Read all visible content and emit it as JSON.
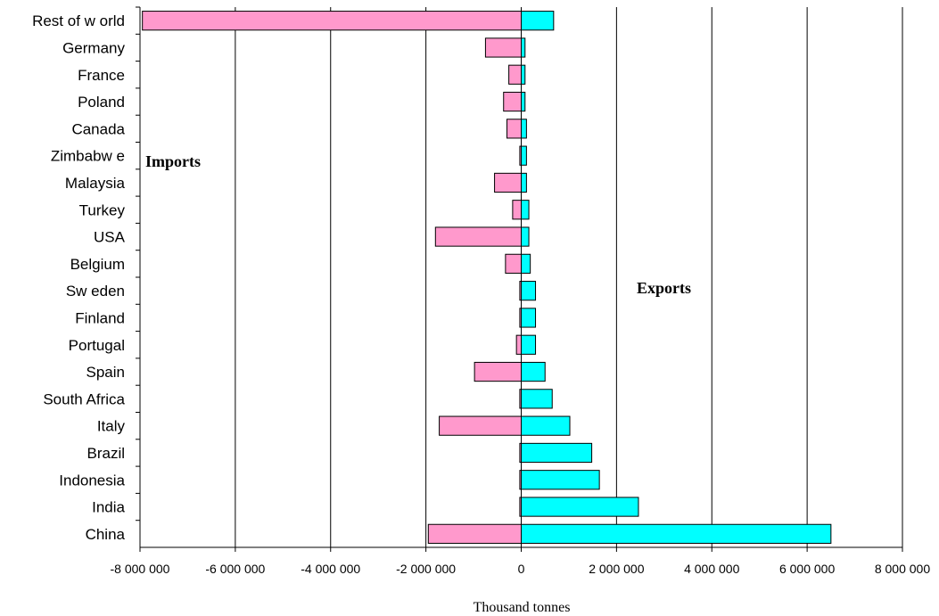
{
  "chart_data": {
    "type": "bar",
    "orientation": "horizontal",
    "categories": [
      "Rest of w orld",
      "Germany",
      "France",
      "Poland",
      "Canada",
      "Zimbabw e",
      "Malaysia",
      "Turkey",
      "USA",
      "Belgium",
      "Sw eden",
      "Finland",
      "Portugal",
      "Spain",
      "South Africa",
      "Italy",
      "Brazil",
      "Indonesia",
      "India",
      "China"
    ],
    "series": [
      {
        "name": "Imports",
        "color": "#ff99cc",
        "values": [
          -7950000,
          -750000,
          -260000,
          -370000,
          -300000,
          -30000,
          -560000,
          -180000,
          -1800000,
          -330000,
          -30000,
          -30000,
          -100000,
          -980000,
          -30000,
          -1720000,
          -30000,
          -30000,
          -30000,
          -1950000
        ]
      },
      {
        "name": "Exports",
        "color": "#00ffff",
        "values": [
          680000,
          80000,
          80000,
          80000,
          110000,
          110000,
          110000,
          160000,
          160000,
          190000,
          300000,
          300000,
          300000,
          500000,
          650000,
          1020000,
          1480000,
          1640000,
          2460000,
          6500000
        ]
      }
    ],
    "annotations": [
      "Imports",
      "Exports"
    ],
    "xlabel": "Thousand tonnes",
    "ylabel": "",
    "xlim": [
      -8000000,
      8000000
    ],
    "xticks": [
      -8000000,
      -6000000,
      -4000000,
      -2000000,
      0,
      2000000,
      4000000,
      6000000,
      8000000
    ],
    "xtick_labels": [
      "-8 000 000",
      "-6 000 000",
      "-4 000 000",
      "-2 000 000",
      "0",
      "2 000 000",
      "4 000 000",
      "6 000 000",
      "8 000 000"
    ],
    "grid": "vertical",
    "legend": "none"
  }
}
